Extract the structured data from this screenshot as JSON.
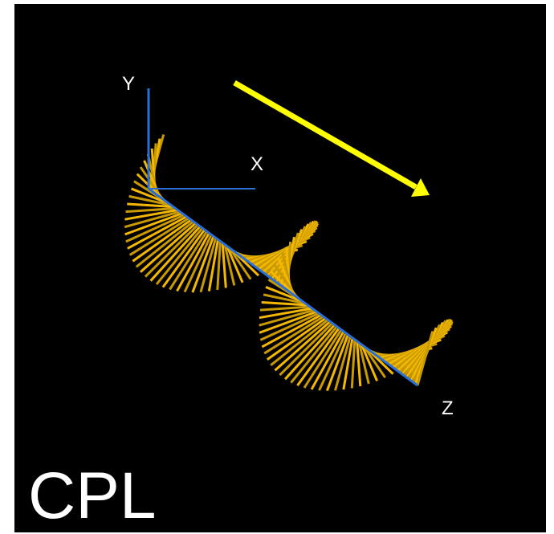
{
  "axes": {
    "y": "Y",
    "x": "X",
    "z": "Z"
  },
  "caption": "CPL"
}
